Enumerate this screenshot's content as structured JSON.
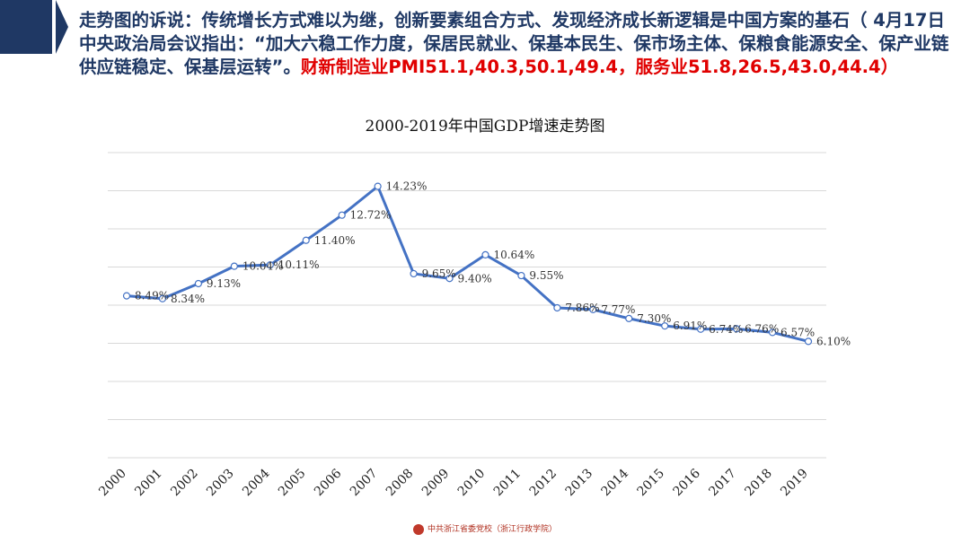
{
  "heading": {
    "text_main": "走势图的诉说：传统增长方式难以为继，创新要素组合方式、发现经济成长新逻辑是中国方案的基石（ 4月17日中央政治局会议指出：“加大六稳工作力度，保居民就业、保基本民生、保市场主体、保粮食能源安全、保产业链供应链稳定、保基层运转”。",
    "text_red": "财新制造业PMI51.1,40.3,50.1,49.4，服务业51.8,26.5,43.0,44.4）"
  },
  "footer": {
    "text": "中共浙江省委党校（浙江行政学院）"
  },
  "colors": {
    "banner": "#1f3864",
    "heading": "#1f3864",
    "heading_highlight": "#e00000",
    "line": "#4472c4"
  },
  "chart_data": {
    "type": "line",
    "title": "2000-2019年中国GDP增速走势图",
    "xlabel": "",
    "ylabel": "",
    "grid": true,
    "ylim": [
      0,
      16
    ],
    "categories": [
      "2000",
      "2001",
      "2002",
      "2003",
      "2004",
      "2005",
      "2006",
      "2007",
      "2008",
      "2009",
      "2010",
      "2011",
      "2012",
      "2013",
      "2014",
      "2015",
      "2016",
      "2017",
      "2018",
      "2019"
    ],
    "values": [
      8.49,
      8.34,
      9.13,
      10.04,
      10.11,
      11.4,
      12.72,
      14.23,
      9.65,
      9.4,
      10.64,
      9.55,
      7.86,
      7.77,
      7.3,
      6.91,
      6.74,
      6.76,
      6.57,
      6.1
    ],
    "labels": [
      "8.49%",
      "8.34%",
      "9.13%",
      "10.04%",
      "10.11%",
      "11.40%",
      "12.72%",
      "14.23%",
      "9.65%",
      "9.40%",
      "10.64%",
      "9.55%",
      "7.86%",
      "7.77%",
      "7.30%",
      "6.91%",
      "6.74%",
      "6.76%",
      "6.57%",
      "6.10%"
    ]
  }
}
